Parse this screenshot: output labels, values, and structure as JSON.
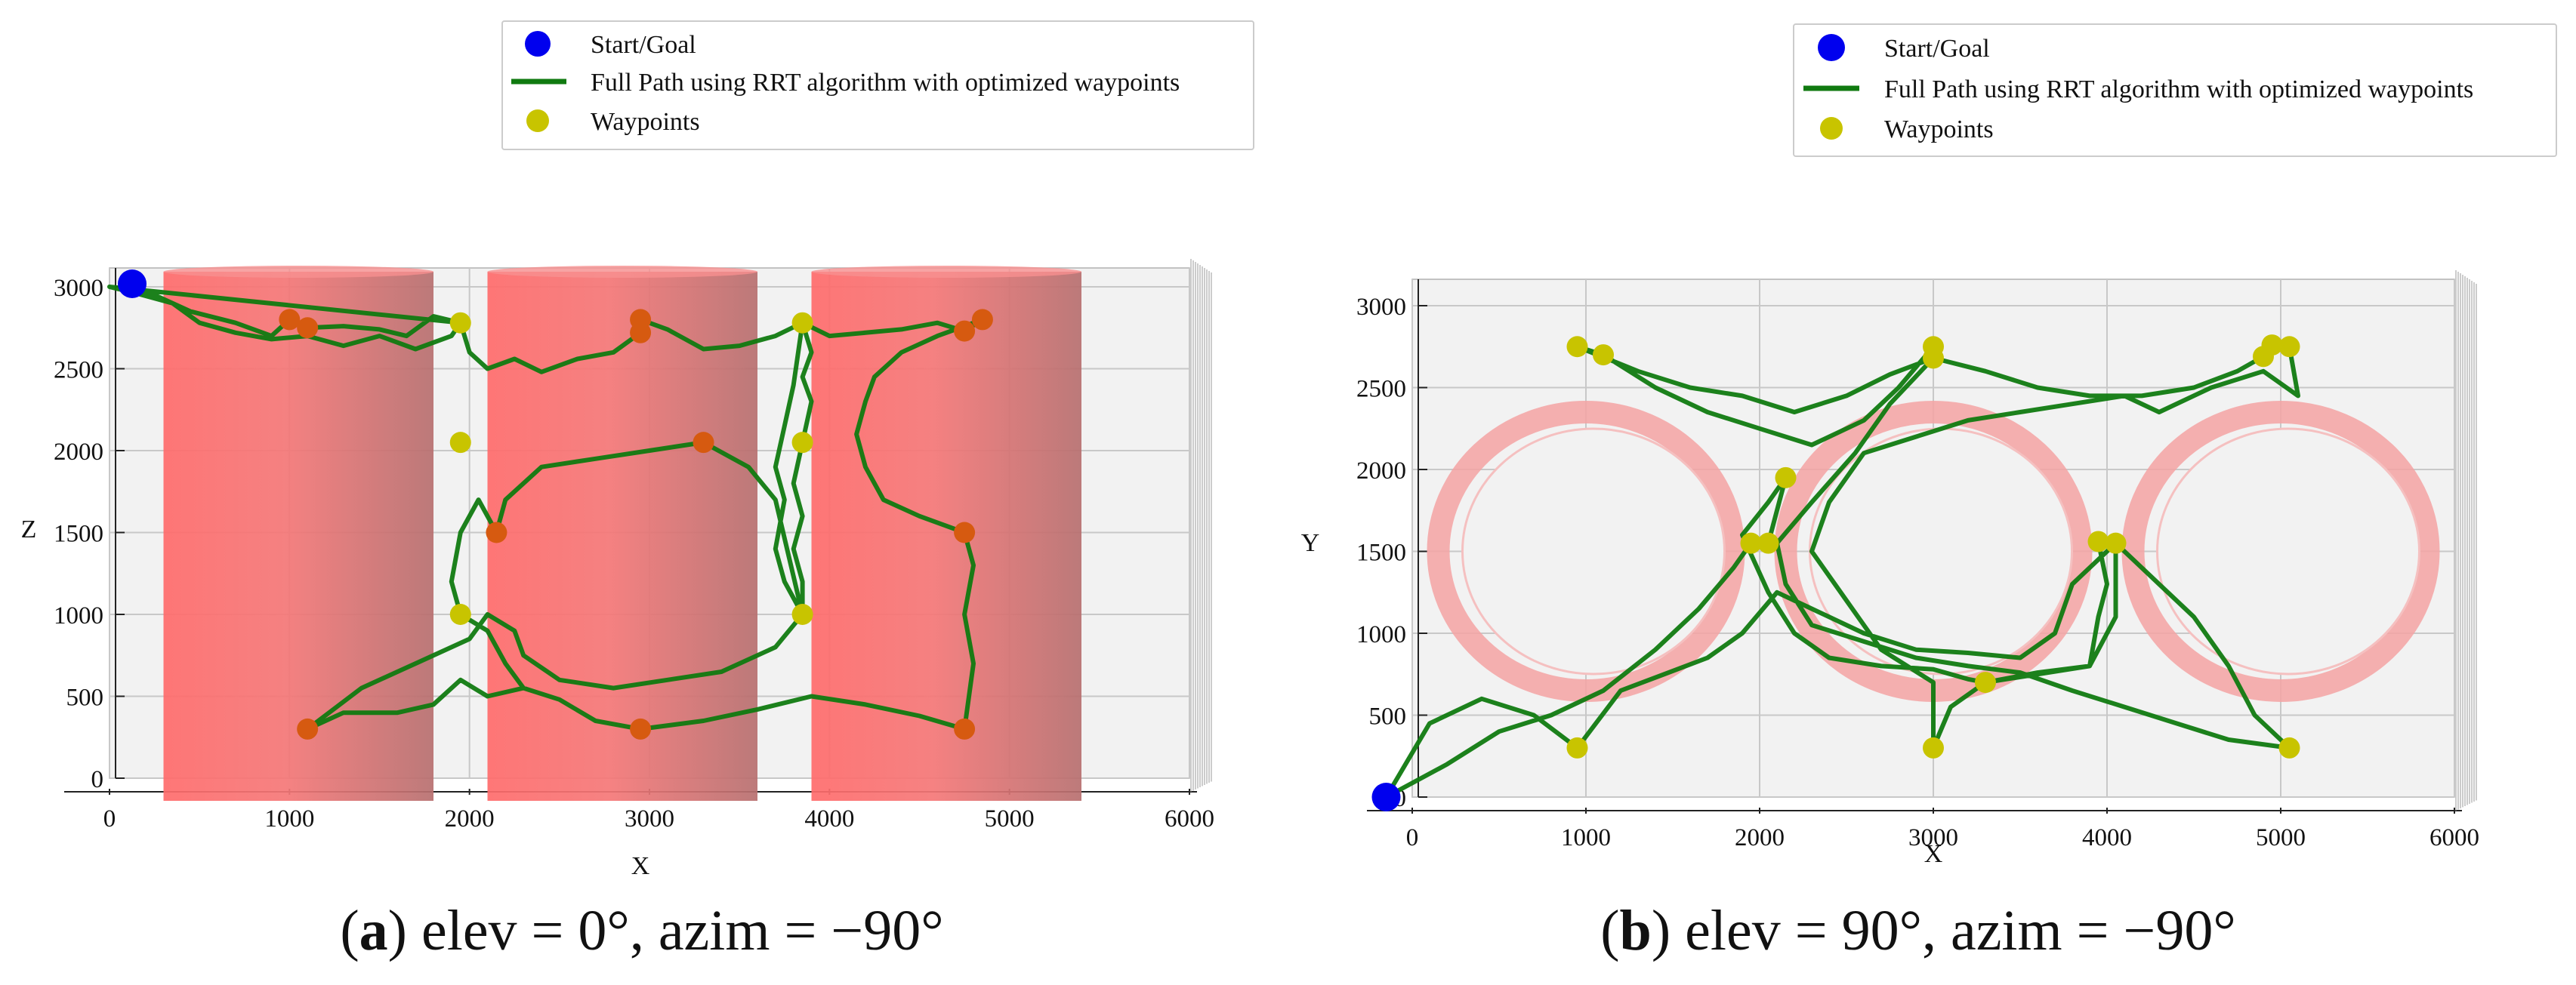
{
  "figure": {
    "panels": [
      {
        "id": "a",
        "caption_letter": "a",
        "caption_text": ") elev = 0°, azim = −90°",
        "caption_open": "("
      },
      {
        "id": "b",
        "caption_letter": "b",
        "caption_text": ") elev = 90°, azim = −90°",
        "caption_open": "("
      }
    ]
  },
  "colors": {
    "start_goal": "#0000ee",
    "path": "#107a10",
    "path_in_obstacle": "#6a3a10",
    "waypoint": "#c8c400",
    "waypoint_in_obstacle": "#d65a10",
    "obstacle": "#ff7070",
    "pane": "#f2f2f2",
    "grid": "#c8c8c8"
  },
  "chart_data": [
    {
      "type": "line",
      "title": "(a) elev = 0°, azim = −90°",
      "view": {
        "elev": 0,
        "azim": -90
      },
      "xlabel": "X",
      "ylabel": "Z",
      "xlim": [
        0,
        6000
      ],
      "ylim": [
        0,
        3000
      ],
      "xticks": [
        "0",
        "1000",
        "2000",
        "3000",
        "4000",
        "5000",
        "6000"
      ],
      "yticks": [
        "0",
        "500",
        "1000",
        "1500",
        "2000",
        "2500",
        "3000"
      ],
      "legend": {
        "position": "top",
        "entries": [
          {
            "label": "Start/Goal",
            "marker": "circle",
            "color": "#0000ee"
          },
          {
            "label": "Full Path using RRT algorithm with optimized waypoints",
            "marker": "line",
            "color": "#107a10"
          },
          {
            "label": "Waypoints",
            "marker": "circle",
            "color": "#c8c400"
          }
        ]
      },
      "obstacles": [
        {
          "x_range": [
            300,
            1800
          ],
          "z_range": [
            0,
            3000
          ]
        },
        {
          "x_range": [
            2100,
            3600
          ],
          "z_range": [
            0,
            3000
          ]
        },
        {
          "x_range": [
            3900,
            5400
          ],
          "z_range": [
            0,
            3000
          ]
        }
      ],
      "start_goal": [
        [
          0,
          3000
        ]
      ],
      "waypoints": [
        {
          "x": 1000,
          "y": 2800,
          "in_obstacle": true
        },
        {
          "x": 1100,
          "y": 2750,
          "in_obstacle": true
        },
        {
          "x": 1950,
          "y": 2780,
          "in_obstacle": false
        },
        {
          "x": 1950,
          "y": 2050,
          "in_obstacle": false
        },
        {
          "x": 2150,
          "y": 1500,
          "in_obstacle": true
        },
        {
          "x": 1950,
          "y": 1000,
          "in_obstacle": false
        },
        {
          "x": 1100,
          "y": 300,
          "in_obstacle": true
        },
        {
          "x": 2950,
          "y": 2800,
          "in_obstacle": true
        },
        {
          "x": 2950,
          "y": 2720,
          "in_obstacle": true
        },
        {
          "x": 3300,
          "y": 2050,
          "in_obstacle": true
        },
        {
          "x": 2950,
          "y": 300,
          "in_obstacle": true
        },
        {
          "x": 3850,
          "y": 2780,
          "in_obstacle": false
        },
        {
          "x": 3850,
          "y": 2050,
          "in_obstacle": false
        },
        {
          "x": 3850,
          "y": 1000,
          "in_obstacle": false
        },
        {
          "x": 4850,
          "y": 2800,
          "in_obstacle": true
        },
        {
          "x": 4750,
          "y": 2730,
          "in_obstacle": true
        },
        {
          "x": 4750,
          "y": 1500,
          "in_obstacle": true
        },
        {
          "x": 4750,
          "y": 300,
          "in_obstacle": true
        }
      ],
      "path": [
        [
          0,
          3000
        ],
        [
          250,
          2950
        ],
        [
          450,
          2850
        ],
        [
          700,
          2780
        ],
        [
          900,
          2700
        ],
        [
          1000,
          2800
        ],
        [
          1100,
          2750
        ],
        [
          1300,
          2760
        ],
        [
          1500,
          2740
        ],
        [
          1650,
          2700
        ],
        [
          1800,
          2820
        ],
        [
          1950,
          2780
        ],
        [
          1900,
          2700
        ],
        [
          1700,
          2620
        ],
        [
          1500,
          2700
        ],
        [
          1300,
          2640
        ],
        [
          1100,
          2700
        ],
        [
          900,
          2680
        ],
        [
          700,
          2720
        ],
        [
          500,
          2780
        ],
        [
          350,
          2900
        ],
        [
          150,
          2960
        ],
        [
          0,
          3000
        ],
        [
          1950,
          2780
        ],
        [
          2000,
          2600
        ],
        [
          2100,
          2500
        ],
        [
          2250,
          2560
        ],
        [
          2400,
          2480
        ],
        [
          2600,
          2560
        ],
        [
          2800,
          2600
        ],
        [
          2950,
          2720
        ],
        [
          2950,
          2800
        ],
        [
          3100,
          2740
        ],
        [
          3300,
          2620
        ],
        [
          3500,
          2640
        ],
        [
          3700,
          2700
        ],
        [
          3850,
          2780
        ],
        [
          3900,
          2600
        ],
        [
          3850,
          2450
        ],
        [
          3900,
          2300
        ],
        [
          3850,
          2050
        ],
        [
          3800,
          1800
        ],
        [
          3850,
          1600
        ],
        [
          3800,
          1400
        ],
        [
          3850,
          1200
        ],
        [
          3850,
          1000
        ],
        [
          3750,
          1200
        ],
        [
          3700,
          1400
        ],
        [
          3750,
          1700
        ],
        [
          3700,
          1900
        ],
        [
          3750,
          2150
        ],
        [
          3800,
          2400
        ],
        [
          3850,
          2780
        ],
        [
          4000,
          2700
        ],
        [
          4200,
          2720
        ],
        [
          4400,
          2740
        ],
        [
          4600,
          2780
        ],
        [
          4750,
          2730
        ],
        [
          4850,
          2800
        ],
        [
          4600,
          2700
        ],
        [
          4400,
          2600
        ],
        [
          4250,
          2450
        ],
        [
          4200,
          2300
        ],
        [
          4150,
          2100
        ],
        [
          4200,
          1900
        ],
        [
          4300,
          1700
        ],
        [
          4500,
          1600
        ],
        [
          4750,
          1500
        ],
        [
          4800,
          1300
        ],
        [
          4750,
          1000
        ],
        [
          4800,
          700
        ],
        [
          4750,
          300
        ],
        [
          4500,
          380
        ],
        [
          4200,
          450
        ],
        [
          3900,
          500
        ],
        [
          3600,
          420
        ],
        [
          3300,
          350
        ],
        [
          2950,
          300
        ],
        [
          2700,
          350
        ],
        [
          2500,
          480
        ],
        [
          2300,
          550
        ],
        [
          2200,
          700
        ],
        [
          2100,
          900
        ],
        [
          1950,
          1000
        ],
        [
          1900,
          1200
        ],
        [
          1950,
          1500
        ],
        [
          2050,
          1700
        ],
        [
          2150,
          1500
        ],
        [
          2200,
          1700
        ],
        [
          2400,
          1900
        ],
        [
          2700,
          1950
        ],
        [
          3000,
          2000
        ],
        [
          3300,
          2050
        ],
        [
          3550,
          1900
        ],
        [
          3700,
          1700
        ],
        [
          3850,
          1000
        ],
        [
          3700,
          800
        ],
        [
          3400,
          650
        ],
        [
          3100,
          600
        ],
        [
          2800,
          550
        ],
        [
          2500,
          600
        ],
        [
          2300,
          750
        ],
        [
          2250,
          900
        ],
        [
          2100,
          1000
        ],
        [
          2000,
          850
        ],
        [
          1700,
          700
        ],
        [
          1400,
          550
        ],
        [
          1100,
          300
        ],
        [
          1300,
          400
        ],
        [
          1600,
          400
        ],
        [
          1800,
          450
        ],
        [
          1950,
          600
        ],
        [
          2100,
          500
        ],
        [
          2300,
          550
        ]
      ]
    },
    {
      "type": "line",
      "title": "(b) elev = 90°, azim = −90°",
      "view": {
        "elev": 90,
        "azim": -90
      },
      "xlabel": "X",
      "ylabel": "Y",
      "xlim": [
        0,
        6000
      ],
      "ylim": [
        0,
        3000
      ],
      "xticks": [
        "0",
        "1000",
        "2000",
        "3000",
        "4000",
        "5000",
        "6000"
      ],
      "yticks": [
        "0",
        "500",
        "1000",
        "1500",
        "2000",
        "2500",
        "3000"
      ],
      "legend": {
        "position": "top",
        "entries": [
          {
            "label": "Start/Goal",
            "marker": "circle",
            "color": "#0000ee"
          },
          {
            "label": "Full Path using RRT algorithm with optimized waypoints",
            "marker": "line",
            "color": "#107a10"
          },
          {
            "label": "Waypoints",
            "marker": "circle",
            "color": "#c8c400"
          }
        ]
      },
      "obstacles": [
        {
          "cx": 1000,
          "cy": 1500,
          "r": 850
        },
        {
          "cx": 3000,
          "cy": 1500,
          "r": 850
        },
        {
          "cx": 5000,
          "cy": 1500,
          "r": 850
        }
      ],
      "start_goal": [
        [
          -150,
          0
        ]
      ],
      "waypoints": [
        {
          "x": 950,
          "y": 2750
        },
        {
          "x": 1100,
          "y": 2700
        },
        {
          "x": 3000,
          "y": 2750
        },
        {
          "x": 3000,
          "y": 2680
        },
        {
          "x": 4950,
          "y": 2760
        },
        {
          "x": 5050,
          "y": 2750
        },
        {
          "x": 4900,
          "y": 2690
        },
        {
          "x": 2150,
          "y": 1950
        },
        {
          "x": 1950,
          "y": 1550
        },
        {
          "x": 2050,
          "y": 1550
        },
        {
          "x": 3950,
          "y": 1560
        },
        {
          "x": 4050,
          "y": 1550
        },
        {
          "x": 3300,
          "y": 700
        },
        {
          "x": 950,
          "y": 300
        },
        {
          "x": 3000,
          "y": 300
        },
        {
          "x": 5050,
          "y": 300
        }
      ],
      "path": [
        [
          -150,
          0
        ],
        [
          200,
          200
        ],
        [
          500,
          400
        ],
        [
          800,
          500
        ],
        [
          1100,
          650
        ],
        [
          1400,
          900
        ],
        [
          1650,
          1150
        ],
        [
          1850,
          1400
        ],
        [
          1950,
          1550
        ],
        [
          2050,
          1550
        ],
        [
          2150,
          1950
        ],
        [
          2050,
          1800
        ],
        [
          1900,
          1600
        ],
        [
          2050,
          1250
        ],
        [
          2200,
          1000
        ],
        [
          2400,
          850
        ],
        [
          2700,
          800
        ],
        [
          3000,
          780
        ],
        [
          3200,
          720
        ],
        [
          3300,
          700
        ],
        [
          3600,
          750
        ],
        [
          3900,
          800
        ],
        [
          3950,
          1100
        ],
        [
          4000,
          1300
        ],
        [
          3950,
          1560
        ],
        [
          4050,
          1550
        ],
        [
          4300,
          1300
        ],
        [
          4500,
          1100
        ],
        [
          4700,
          800
        ],
        [
          4850,
          500
        ],
        [
          5050,
          300
        ],
        [
          4700,
          350
        ],
        [
          4400,
          450
        ],
        [
          4100,
          550
        ],
        [
          3800,
          650
        ],
        [
          3500,
          760
        ],
        [
          3200,
          800
        ],
        [
          2900,
          850
        ],
        [
          2600,
          950
        ],
        [
          2300,
          1050
        ],
        [
          2150,
          1300
        ],
        [
          2100,
          1550
        ],
        [
          2300,
          1800
        ],
        [
          2550,
          2100
        ],
        [
          2750,
          2400
        ],
        [
          3000,
          2680
        ],
        [
          3000,
          2750
        ],
        [
          2800,
          2500
        ],
        [
          2600,
          2300
        ],
        [
          2300,
          2150
        ],
        [
          2000,
          2250
        ],
        [
          1700,
          2350
        ],
        [
          1400,
          2500
        ],
        [
          1100,
          2700
        ],
        [
          950,
          2750
        ],
        [
          1300,
          2600
        ],
        [
          1600,
          2500
        ],
        [
          1900,
          2450
        ],
        [
          2200,
          2350
        ],
        [
          2500,
          2450
        ],
        [
          2750,
          2580
        ],
        [
          3000,
          2680
        ],
        [
          3300,
          2600
        ],
        [
          3600,
          2500
        ],
        [
          3900,
          2450
        ],
        [
          4200,
          2450
        ],
        [
          4500,
          2500
        ],
        [
          4750,
          2600
        ],
        [
          4900,
          2690
        ],
        [
          4950,
          2760
        ],
        [
          5050,
          2750
        ],
        [
          5100,
          2450
        ],
        [
          4900,
          2600
        ],
        [
          4600,
          2500
        ],
        [
          4300,
          2350
        ],
        [
          4100,
          2450
        ],
        [
          3800,
          2400
        ],
        [
          3500,
          2350
        ],
        [
          3200,
          2300
        ],
        [
          2900,
          2200
        ],
        [
          2600,
          2100
        ],
        [
          2400,
          1800
        ],
        [
          2300,
          1500
        ],
        [
          2500,
          1200
        ],
        [
          2700,
          900
        ],
        [
          3000,
          700
        ],
        [
          3000,
          300
        ],
        [
          3100,
          550
        ],
        [
          3300,
          700
        ],
        [
          3600,
          760
        ],
        [
          3900,
          800
        ],
        [
          4050,
          1100
        ],
        [
          4050,
          1550
        ],
        [
          3800,
          1300
        ],
        [
          3700,
          1000
        ],
        [
          3500,
          850
        ],
        [
          3200,
          880
        ],
        [
          2900,
          900
        ],
        [
          2600,
          1000
        ],
        [
          2300,
          1150
        ],
        [
          2100,
          1250
        ],
        [
          1900,
          1000
        ],
        [
          1700,
          850
        ],
        [
          1450,
          750
        ],
        [
          1200,
          650
        ],
        [
          950,
          300
        ],
        [
          700,
          500
        ],
        [
          400,
          600
        ],
        [
          100,
          450
        ],
        [
          -150,
          0
        ]
      ]
    }
  ]
}
